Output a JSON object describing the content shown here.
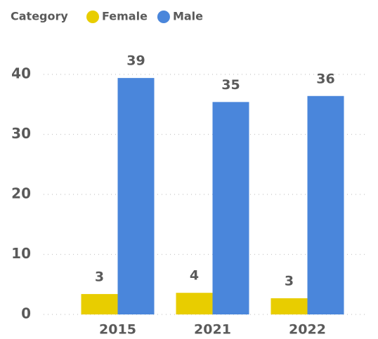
{
  "chart_data": {
    "type": "bar",
    "legend_title": "Category",
    "categories": [
      "2015",
      "2021",
      "2022"
    ],
    "series": [
      {
        "name": "Female",
        "color": "#e8cd00",
        "values": [
          3.4,
          3.6,
          2.7
        ],
        "value_labels": [
          "3",
          "4",
          "3"
        ]
      },
      {
        "name": "Male",
        "color": "#4a86db",
        "values": [
          39.4,
          35.4,
          36.4
        ],
        "value_labels": [
          "39",
          "35",
          "36"
        ]
      }
    ],
    "ylim": [
      0,
      40
    ],
    "yticks": [
      0,
      10,
      20,
      30,
      40
    ],
    "grid": true,
    "legend": "top-left"
  }
}
